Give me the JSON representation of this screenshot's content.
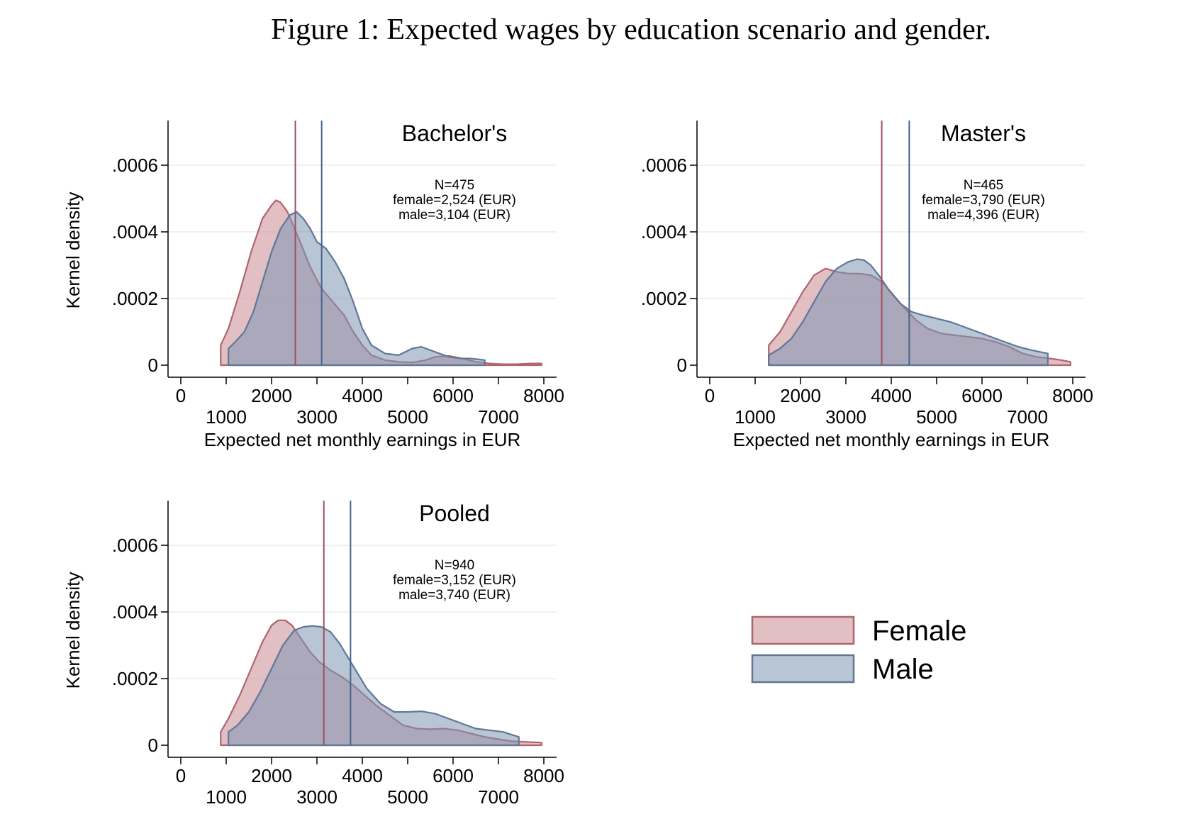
{
  "figure": {
    "title": "Figure 1: Expected wages by education scenario and gender."
  },
  "colors": {
    "female_fill": "#c98a92",
    "female_line": "#b06470",
    "female_vline": "#9e4f5c",
    "male_fill": "#7d95b3",
    "male_line": "#5f7896",
    "male_vline": "#46648a",
    "overlap": "#8e8299",
    "grid": "#e6e6e6",
    "axis": "#000000"
  },
  "legend": {
    "position": "bottom-right",
    "items": [
      {
        "label": "Female",
        "series": "female"
      },
      {
        "label": "Male",
        "series": "male"
      }
    ]
  },
  "chart_data": [
    {
      "type": "area",
      "title": "Bachelor's",
      "ylabel": "Kernel density",
      "xlabel": "Expected net monthly earnings in EUR",
      "xlim": [
        0,
        8000
      ],
      "ylim": [
        0,
        0.0006
      ],
      "xticks_upper": [
        "0",
        "2000",
        "4000",
        "6000",
        "8000"
      ],
      "xticks_lower": [
        "1000",
        "3000",
        "5000",
        "7000"
      ],
      "yticks": [
        "0",
        ".0002",
        ".0004",
        ".0006"
      ],
      "grid": true,
      "annotation": [
        "N=475",
        "female=2,524 (EUR)",
        "male=3,104 (EUR)"
      ],
      "means": {
        "female": 2524,
        "male": 3104
      },
      "series": [
        {
          "name": "female",
          "x": [
            880,
            1050,
            1300,
            1550,
            1800,
            2000,
            2100,
            2200,
            2350,
            2600,
            2850,
            3100,
            3350,
            3600,
            3800,
            4000,
            4200,
            4500,
            4800,
            5100,
            5400,
            5600,
            5900,
            6200,
            6500,
            6800,
            7100,
            7400,
            7700,
            7950
          ],
          "y": [
            6e-05,
            0.00011,
            0.00022,
            0.00034,
            0.00044,
            0.00048,
            0.000495,
            0.000488,
            0.00046,
            0.00038,
            0.000295,
            0.00023,
            0.00019,
            0.00015,
            0.0001,
            6e-05,
            3e-05,
            1.5e-05,
            1e-05,
            8e-06,
            1.5e-05,
            2.5e-05,
            2.8e-05,
            2e-05,
            1e-05,
            5e-06,
            3e-06,
            3e-06,
            5e-06,
            5e-06
          ]
        },
        {
          "name": "male",
          "x": [
            1050,
            1200,
            1400,
            1600,
            1800,
            2000,
            2200,
            2400,
            2550,
            2700,
            2850,
            3000,
            3200,
            3400,
            3600,
            3800,
            4000,
            4200,
            4500,
            4800,
            5100,
            5300,
            5600,
            5900,
            6200,
            6400,
            6700
          ],
          "y": [
            5e-05,
            7e-05,
            0.0001,
            0.00016,
            0.00025,
            0.00034,
            0.00041,
            0.00045,
            0.00046,
            0.00044,
            0.00041,
            0.00037,
            0.00035,
            0.00031,
            0.00026,
            0.00019,
            0.00011,
            6e-05,
            3.5e-05,
            3e-05,
            5e-05,
            5.5e-05,
            4e-05,
            2.5e-05,
            2e-05,
            2e-05,
            1.5e-05
          ]
        }
      ]
    },
    {
      "type": "area",
      "title": "Master's",
      "ylabel": "",
      "xlabel": "Expected net monthly earnings in EUR",
      "xlim": [
        0,
        8000
      ],
      "ylim": [
        0,
        0.0006
      ],
      "xticks_upper": [
        "0",
        "2000",
        "4000",
        "6000",
        "8000"
      ],
      "xticks_lower": [
        "1000",
        "3000",
        "5000",
        "7000"
      ],
      "yticks": [
        "0",
        ".0002",
        ".0004",
        ".0006"
      ],
      "grid": true,
      "annotation": [
        "N=465",
        "female=3,790 (EUR)",
        "male=4,396 (EUR)"
      ],
      "means": {
        "female": 3790,
        "male": 4396
      },
      "series": [
        {
          "name": "female",
          "x": [
            1300,
            1550,
            1800,
            2050,
            2300,
            2550,
            2800,
            3050,
            3300,
            3550,
            3800,
            4050,
            4300,
            4550,
            4800,
            5100,
            5400,
            5700,
            6000,
            6300,
            6600,
            6900,
            7200,
            7500,
            7750,
            7950
          ],
          "y": [
            6e-05,
            0.0001,
            0.00016,
            0.00022,
            0.00027,
            0.00029,
            0.00028,
            0.000275,
            0.000275,
            0.00027,
            0.00025,
            0.00021,
            0.00017,
            0.000135,
            0.00011,
            9.5e-05,
            9e-05,
            8.5e-05,
            8e-05,
            7e-05,
            5.5e-05,
            3.5e-05,
            2.5e-05,
            2e-05,
            1.5e-05,
            1e-05
          ]
        },
        {
          "name": "male",
          "x": [
            1300,
            1550,
            1800,
            2050,
            2300,
            2550,
            2800,
            3050,
            3250,
            3400,
            3550,
            3750,
            3950,
            4200,
            4450,
            4700,
            5000,
            5300,
            5600,
            5900,
            6200,
            6500,
            6800,
            7100,
            7450
          ],
          "y": [
            3e-05,
            5e-05,
            8e-05,
            0.00013,
            0.00019,
            0.00025,
            0.00029,
            0.00031,
            0.000318,
            0.000315,
            0.0003,
            0.000265,
            0.000225,
            0.000185,
            0.00016,
            0.00015,
            0.00014,
            0.00013,
            0.000115,
            0.0001,
            8.5e-05,
            7e-05,
            5.5e-05,
            4.5e-05,
            3.5e-05
          ]
        }
      ]
    },
    {
      "type": "area",
      "title": "Pooled",
      "ylabel": "Kernel density",
      "xlabel": "",
      "xlim": [
        0,
        8000
      ],
      "ylim": [
        0,
        0.0006
      ],
      "xticks_upper": [
        "0",
        "2000",
        "4000",
        "6000",
        "8000"
      ],
      "xticks_lower": [
        "1000",
        "3000",
        "5000",
        "7000"
      ],
      "yticks": [
        "0",
        ".0002",
        ".0004",
        ".0006"
      ],
      "grid": true,
      "annotation": [
        "N=940",
        "female=3,152 (EUR)",
        "male=3,740 (EUR)"
      ],
      "means": {
        "female": 3152,
        "male": 3740
      },
      "series": [
        {
          "name": "female",
          "x": [
            880,
            1050,
            1300,
            1550,
            1800,
            2000,
            2150,
            2300,
            2450,
            2650,
            2850,
            3050,
            3300,
            3550,
            3800,
            4050,
            4300,
            4600,
            4900,
            5200,
            5500,
            5800,
            6100,
            6400,
            6700,
            7000,
            7300,
            7600,
            7950
          ],
          "y": [
            4e-05,
            8e-05,
            0.00015,
            0.00023,
            0.00031,
            0.00036,
            0.000375,
            0.000375,
            0.00036,
            0.00032,
            0.00028,
            0.00025,
            0.000225,
            0.000205,
            0.00018,
            0.00015,
            0.00012,
            9e-05,
            6e-05,
            5e-05,
            4.8e-05,
            5e-05,
            4.5e-05,
            3.5e-05,
            2.5e-05,
            1.8e-05,
            1.2e-05,
            1e-05,
            8e-06
          ]
        },
        {
          "name": "male",
          "x": [
            1050,
            1250,
            1500,
            1750,
            2000,
            2250,
            2500,
            2700,
            2900,
            3100,
            3300,
            3500,
            3700,
            3900,
            4100,
            4400,
            4700,
            5000,
            5300,
            5600,
            5900,
            6200,
            6500,
            6800,
            7100,
            7450
          ],
          "y": [
            4e-05,
            6e-05,
            0.0001,
            0.00016,
            0.00023,
            0.0003,
            0.000345,
            0.000355,
            0.000358,
            0.000355,
            0.00034,
            0.000305,
            0.00026,
            0.000215,
            0.00017,
            0.000125,
            0.0001,
            0.0001,
            0.000102,
            9.5e-05,
            8e-05,
            6.5e-05,
            5e-05,
            4.5e-05,
            4e-05,
            2.5e-05
          ]
        }
      ]
    }
  ]
}
